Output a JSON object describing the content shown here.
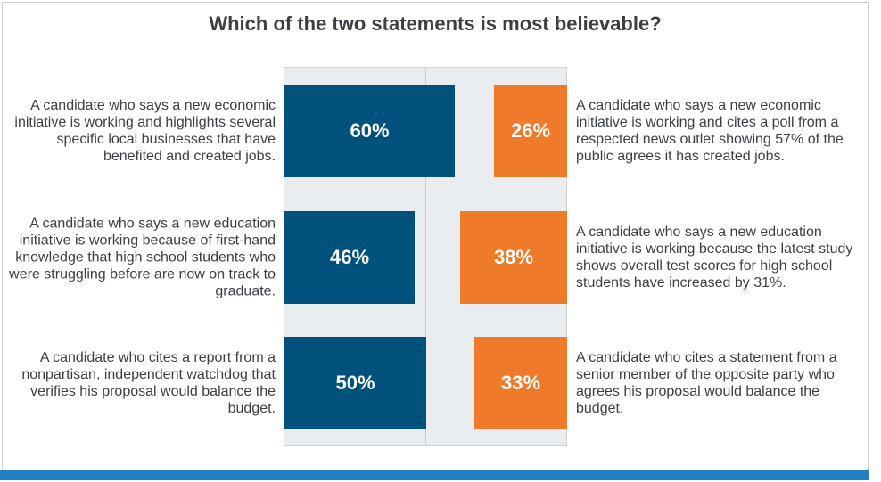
{
  "chart_data": {
    "type": "bar",
    "orientation": "horizontal-diverging",
    "title": "Which of the two statements is most believable?",
    "xlim": [
      0,
      100
    ],
    "rows": [
      {
        "left": {
          "statement": "A candidate who says a new economic initiative is working and highlights several specific local businesses that have benefited and created jobs.",
          "value": 60,
          "label": "60%"
        },
        "right": {
          "statement": "A candidate who says a new economic initiative is working and cites a poll from a respected news outlet showing 57% of the public agrees it has created jobs.",
          "value": 26,
          "label": "26%"
        }
      },
      {
        "left": {
          "statement": "A candidate who says a new education initiative is working because of first-hand knowledge that high school students who were struggling before are now on track to graduate.",
          "value": 46,
          "label": "46%"
        },
        "right": {
          "statement": "A candidate who says a new education initiative is working because the latest study shows overall test scores for high school students have increased by 31%.",
          "value": 38,
          "label": "38%"
        }
      },
      {
        "left": {
          "statement": "A candidate who cites a report from a nonpartisan, independent watchdog that verifies his proposal would balance the budget.",
          "value": 50,
          "label": "50%"
        },
        "right": {
          "statement": "A candidate who cites a statement from a senior member of the opposite party who agrees his proposal would balance the budget.",
          "value": 33,
          "label": "33%"
        }
      }
    ],
    "colors": {
      "left": "#00527c",
      "right": "#ef7a2a",
      "accent": "#1f7fc2"
    }
  }
}
